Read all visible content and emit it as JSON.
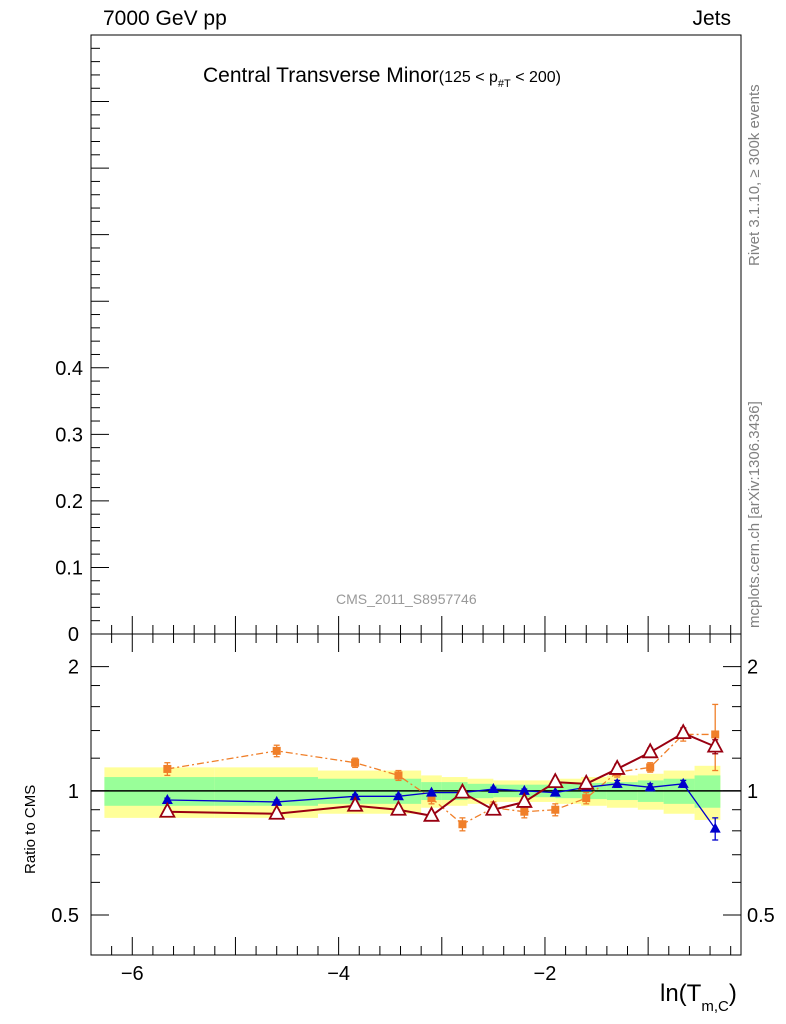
{
  "header": {
    "left": "7000 GeV pp",
    "right": "Jets"
  },
  "title": {
    "main": "Central Transverse Minor",
    "cut": "(125 < p",
    "cut_sub": "#T",
    "cut_end": " < 200)"
  },
  "side_labels": {
    "rivet": "Rivet 3.1.10, ≥ 300k events",
    "mcplots": "mcplots.cern.ch [arXiv:1306.3436]"
  },
  "watermark": "CMS_2011_S8957746",
  "colors": {
    "band_outer": "#ffff99",
    "band_inner": "#99ff99",
    "series_orange": "#f07f29",
    "series_blue": "#0000cc",
    "series_darkred": "#990011"
  },
  "chart_data": [
    {
      "type": "line",
      "panel": "main",
      "ylim": [
        0,
        0.9
      ],
      "yticks": [
        "0.1",
        "0.2",
        "0.3",
        "0.4"
      ],
      "ytick_zero": "0",
      "series": []
    },
    {
      "type": "line",
      "panel": "ratio",
      "xlabel": "ln(T",
      "xlabel_sub": "m,C",
      "xlabel_end": ")",
      "ylabel": "Ratio to CMS",
      "xlim": [
        -6.4,
        -0.1
      ],
      "ylim": [
        0.4,
        2.4
      ],
      "log_y": true,
      "xticks": [
        {
          "v": -6,
          "label": "−6"
        },
        {
          "v": -4,
          "label": "−4"
        },
        {
          "v": -2,
          "label": "−2"
        }
      ],
      "yticks": [
        {
          "v": 0.5,
          "label": "0.5"
        },
        {
          "v": 1,
          "label": "1"
        },
        {
          "v": 2,
          "label": "2"
        }
      ],
      "bands": {
        "edges": [
          -6.27,
          -5.2,
          -4.2,
          -3.2,
          -3.0,
          -2.75,
          -2.5,
          -2.2,
          -1.9,
          -1.65,
          -1.4,
          -1.1,
          -0.85,
          -0.55,
          -0.3
        ],
        "outer": [
          0.14,
          0.14,
          0.12,
          0.09,
          0.08,
          0.07,
          0.06,
          0.06,
          0.07,
          0.08,
          0.09,
          0.1,
          0.12,
          0.15
        ],
        "inner": [
          0.08,
          0.08,
          0.07,
          0.05,
          0.05,
          0.04,
          0.035,
          0.035,
          0.04,
          0.045,
          0.05,
          0.06,
          0.07,
          0.09
        ]
      },
      "series": [
        {
          "marker": "square",
          "style": "dashdot",
          "x": [
            -5.66,
            -4.6,
            -3.84,
            -3.42,
            -3.1,
            -2.8,
            -2.5,
            -2.2,
            -1.9,
            -1.6,
            -1.3,
            -0.98,
            -0.66,
            -0.35
          ],
          "y": [
            1.13,
            1.25,
            1.17,
            1.09,
            0.96,
            0.83,
            0.91,
            0.89,
            0.9,
            0.96,
            1.11,
            1.14,
            1.37,
            1.37
          ],
          "err": [
            0.04,
            0.04,
            0.03,
            0.03,
            0.03,
            0.03,
            0.03,
            0.03,
            0.03,
            0.03,
            0.03,
            0.03,
            0.05,
            0.25
          ]
        },
        {
          "marker": "triangle",
          "style": "solid",
          "x": [
            -5.66,
            -4.6,
            -3.84,
            -3.42,
            -3.1,
            -2.8,
            -2.5,
            -2.2,
            -1.9,
            -1.6,
            -1.3,
            -0.98,
            -0.66,
            -0.35
          ],
          "y": [
            0.95,
            0.94,
            0.97,
            0.97,
            0.99,
            0.99,
            1.01,
            1.0,
            0.99,
            1.02,
            1.04,
            1.02,
            1.04,
            0.81
          ],
          "err": [
            0.01,
            0.01,
            0.01,
            0.01,
            0.01,
            0.01,
            0.01,
            0.01,
            0.01,
            0.01,
            0.02,
            0.02,
            0.02,
            0.05
          ]
        },
        {
          "marker": "open-triangle",
          "style": "solid",
          "x": [
            -5.66,
            -4.6,
            -3.84,
            -3.42,
            -3.1,
            -2.8,
            -2.5,
            -2.2,
            -1.9,
            -1.6,
            -1.3,
            -0.98,
            -0.66,
            -0.35
          ],
          "y": [
            0.89,
            0.88,
            0.92,
            0.9,
            0.87,
            0.99,
            0.9,
            0.94,
            1.05,
            1.04,
            1.13,
            1.24,
            1.38,
            1.28
          ],
          "err": [
            0.02,
            0.02,
            0.02,
            0.02,
            0.02,
            0.02,
            0.02,
            0.02,
            0.02,
            0.02,
            0.03,
            0.03,
            0.04,
            0.05
          ]
        }
      ]
    }
  ]
}
